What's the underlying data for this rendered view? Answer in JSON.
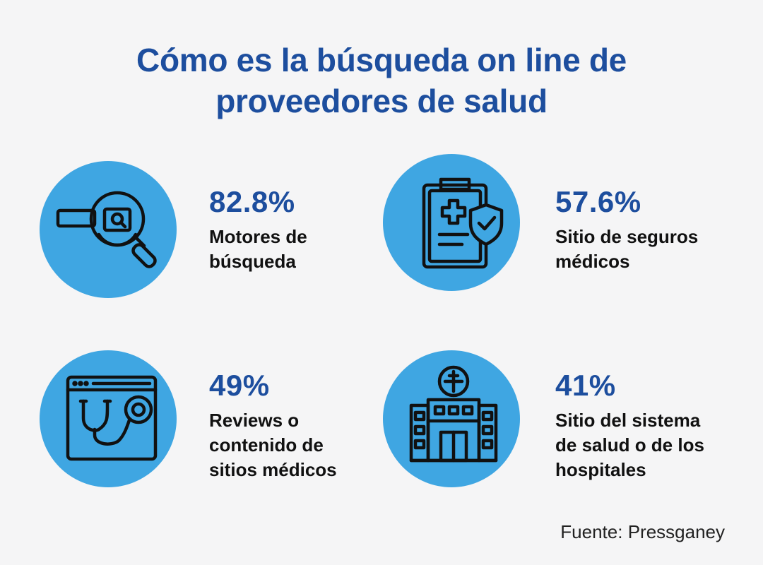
{
  "title": {
    "line1": "Cómo es la búsqueda on line de",
    "line2": "proveedores de salud"
  },
  "cards": [
    {
      "stat": "82.8%",
      "label_lines": [
        "Motores de",
        "búsqueda"
      ],
      "icon": "magnifier-search-icon"
    },
    {
      "stat": "57.6%",
      "label_lines": [
        "Sitio de seguros",
        "médicos"
      ],
      "icon": "clipboard-shield-icon"
    },
    {
      "stat": "49%",
      "label_lines": [
        "Reviews o",
        "contenido de",
        "sitios médicos"
      ],
      "icon": "browser-stethoscope-icon"
    },
    {
      "stat": "41%",
      "label_lines": [
        "Sitio del sistema",
        "de salud o de los",
        "hospitales"
      ],
      "icon": "hospital-building-icon"
    }
  ],
  "source": "Fuente: Pressganey",
  "colors": {
    "background": "#f5f5f6",
    "title": "#1d4e9e",
    "circle": "#3fa6e2",
    "icon_stroke": "#111111",
    "text": "#111111"
  }
}
